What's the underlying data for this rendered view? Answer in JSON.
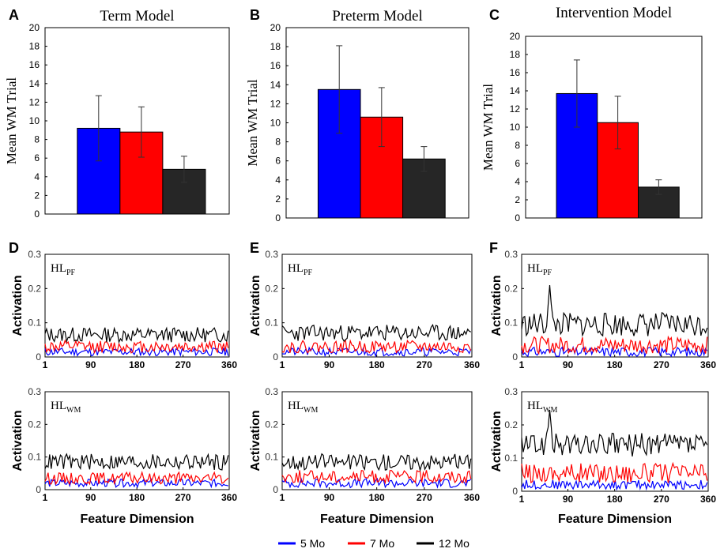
{
  "colors": {
    "series_5": "#0000ff",
    "series_7": "#ff0000",
    "series_12": "#000000",
    "bar_12": "#262626"
  },
  "legend": [
    "5 Mo",
    "7 Mo",
    "12 Mo"
  ],
  "chart_data": [
    {
      "panel": "A",
      "type": "bar",
      "title": "Term Model",
      "xlabel": "",
      "ylabel": "Mean WM Trial",
      "ylim": [
        0,
        20
      ],
      "yticks": [
        0,
        2,
        4,
        6,
        8,
        10,
        12,
        14,
        16,
        18,
        20
      ],
      "categories": [
        "5 Mo",
        "7 Mo",
        "12 Mo"
      ],
      "values": [
        9.2,
        8.8,
        4.8
      ],
      "errors": [
        3.5,
        2.7,
        1.4
      ]
    },
    {
      "panel": "B",
      "type": "bar",
      "title": "Preterm Model",
      "xlabel": "",
      "ylabel": "Mean WM Trial",
      "ylim": [
        0,
        20
      ],
      "yticks": [
        0,
        2,
        4,
        6,
        8,
        10,
        12,
        14,
        16,
        18,
        20
      ],
      "categories": [
        "5 Mo",
        "7 Mo",
        "12 Mo"
      ],
      "values": [
        13.5,
        10.6,
        6.2
      ],
      "errors": [
        4.6,
        3.1,
        1.3
      ]
    },
    {
      "panel": "C",
      "type": "bar",
      "title": "Intervention Model",
      "xlabel": "",
      "ylabel": "Mean WM Trial",
      "ylim": [
        0,
        20
      ],
      "yticks": [
        0,
        2,
        4,
        6,
        8,
        10,
        12,
        14,
        16,
        18,
        20
      ],
      "categories": [
        "5 Mo",
        "7 Mo",
        "12 Mo"
      ],
      "values": [
        13.7,
        10.5,
        3.4
      ],
      "errors": [
        3.7,
        2.9,
        0.8
      ]
    },
    {
      "panel": "D",
      "type": "line",
      "xlabel": "Feature Dimension",
      "ylabel": "Activation",
      "xlim": [
        1,
        360
      ],
      "xticks": [
        1,
        90,
        180,
        270,
        360
      ],
      "ylim": [
        0,
        0.3
      ],
      "yticks": [
        0,
        0.1,
        0.2,
        0.3
      ],
      "ytick_labels": [
        "0",
        "0.1",
        "0.2",
        "0.3"
      ],
      "subplots": [
        {
          "label": "HL",
          "sub": "PF",
          "series": [
            {
              "name": "5 Mo",
              "base": 0.015,
              "amp": 0.012,
              "seed": 11
            },
            {
              "name": "7 Mo",
              "base": 0.03,
              "amp": 0.018,
              "seed": 12
            },
            {
              "name": "12 Mo",
              "base": 0.065,
              "amp": 0.022,
              "seed": 13
            }
          ]
        },
        {
          "label": "HL",
          "sub": "WM",
          "series": [
            {
              "name": "5 Mo",
              "base": 0.02,
              "amp": 0.012,
              "seed": 14
            },
            {
              "name": "7 Mo",
              "base": 0.035,
              "amp": 0.018,
              "seed": 15
            },
            {
              "name": "12 Mo",
              "base": 0.085,
              "amp": 0.025,
              "seed": 16
            }
          ]
        }
      ]
    },
    {
      "panel": "E",
      "type": "line",
      "xlabel": "Feature Dimension",
      "ylabel": "Activation",
      "xlim": [
        1,
        360
      ],
      "xticks": [
        1,
        90,
        180,
        270,
        360
      ],
      "ylim": [
        0,
        0.3
      ],
      "yticks": [
        0,
        0.1,
        0.2,
        0.3
      ],
      "ytick_labels": [
        "0",
        "0.1",
        "0.2",
        "0.3"
      ],
      "subplots": [
        {
          "label": "HL",
          "sub": "PF",
          "series": [
            {
              "name": "5 Mo",
              "base": 0.015,
              "amp": 0.012,
              "seed": 21
            },
            {
              "name": "7 Mo",
              "base": 0.03,
              "amp": 0.018,
              "seed": 22
            },
            {
              "name": "12 Mo",
              "base": 0.07,
              "amp": 0.024,
              "seed": 23
            }
          ]
        },
        {
          "label": "HL",
          "sub": "WM",
          "series": [
            {
              "name": "5 Mo",
              "base": 0.02,
              "amp": 0.014,
              "seed": 24
            },
            {
              "name": "7 Mo",
              "base": 0.04,
              "amp": 0.02,
              "seed": 25
            },
            {
              "name": "12 Mo",
              "base": 0.085,
              "amp": 0.025,
              "seed": 26
            }
          ]
        }
      ]
    },
    {
      "panel": "F",
      "type": "line",
      "xlabel": "Feature Dimension",
      "ylabel": "Activation",
      "xlim": [
        1,
        360
      ],
      "xticks": [
        1,
        90,
        180,
        270,
        360
      ],
      "ylim": [
        0,
        0.3
      ],
      "yticks": [
        0,
        0.1,
        0.2,
        0.3
      ],
      "ytick_labels": [
        "0",
        "0.1",
        "0.2",
        "0.3"
      ],
      "subplots": [
        {
          "label": "HL",
          "sub": "PF",
          "series": [
            {
              "name": "5 Mo",
              "base": 0.015,
              "amp": 0.014,
              "seed": 31
            },
            {
              "name": "7 Mo",
              "base": 0.035,
              "amp": 0.025,
              "seed": 32
            },
            {
              "name": "12 Mo",
              "base": 0.095,
              "amp": 0.035,
              "seed": 33,
              "peak_x": 55,
              "peak_y": 0.21
            }
          ]
        },
        {
          "label": "HL",
          "sub": "WM",
          "series": [
            {
              "name": "5 Mo",
              "base": 0.02,
              "amp": 0.014,
              "seed": 34
            },
            {
              "name": "7 Mo",
              "base": 0.055,
              "amp": 0.03,
              "seed": 35
            },
            {
              "name": "12 Mo",
              "base": 0.14,
              "amp": 0.035,
              "seed": 36,
              "peak_x": 55,
              "peak_y": 0.245
            }
          ]
        }
      ]
    }
  ]
}
